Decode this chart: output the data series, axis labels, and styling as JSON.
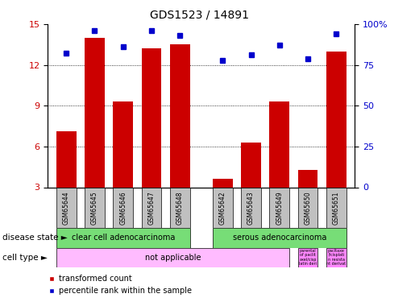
{
  "title": "GDS1523 / 14891",
  "samples": [
    "GSM65644",
    "GSM65645",
    "GSM65646",
    "GSM65647",
    "GSM65648",
    "GSM65642",
    "GSM65643",
    "GSM65649",
    "GSM65650",
    "GSM65651"
  ],
  "bar_values": [
    7.1,
    14.0,
    9.3,
    13.2,
    13.5,
    3.6,
    6.3,
    9.3,
    4.3,
    13.0
  ],
  "dot_values": [
    82,
    96,
    86,
    96,
    93,
    78,
    81,
    87,
    79,
    94
  ],
  "bar_color": "#cc0000",
  "dot_color": "#0000cc",
  "ylim_left": [
    3,
    15
  ],
  "ylim_right": [
    0,
    100
  ],
  "yticks_left": [
    3,
    6,
    9,
    12,
    15
  ],
  "ytick_labels_left": [
    "3",
    "6",
    "9",
    "12",
    "15"
  ],
  "yticks_right": [
    0,
    25,
    50,
    75,
    100
  ],
  "ytick_labels_right": [
    "0",
    "25",
    "50",
    "75",
    "100%"
  ],
  "grid_values": [
    6,
    9,
    12
  ],
  "disease_state_labels": [
    "clear cell adenocarcinoma",
    "serous adenocarcinoma"
  ],
  "cell_type_main_label": "not applicable",
  "cell_type_small1": "parental\nof paclit\naxel/cisp\nlatin deri",
  "cell_type_small2": "pacltaxe\nl/cisplati\nn resista\nnt derivat",
  "disease_state_row_label": "disease state",
  "cell_type_row_label": "cell type",
  "legend_bar": "transformed count",
  "legend_dot": "percentile rank within the sample",
  "green_color": "#77dd77",
  "pink_color": "#ffbbff",
  "pink2_color": "#ff88ff",
  "gray_color": "#c0c0c0",
  "white_color": "#ffffff",
  "title_fontsize": 10,
  "tick_fontsize": 8,
  "label_fontsize": 8
}
